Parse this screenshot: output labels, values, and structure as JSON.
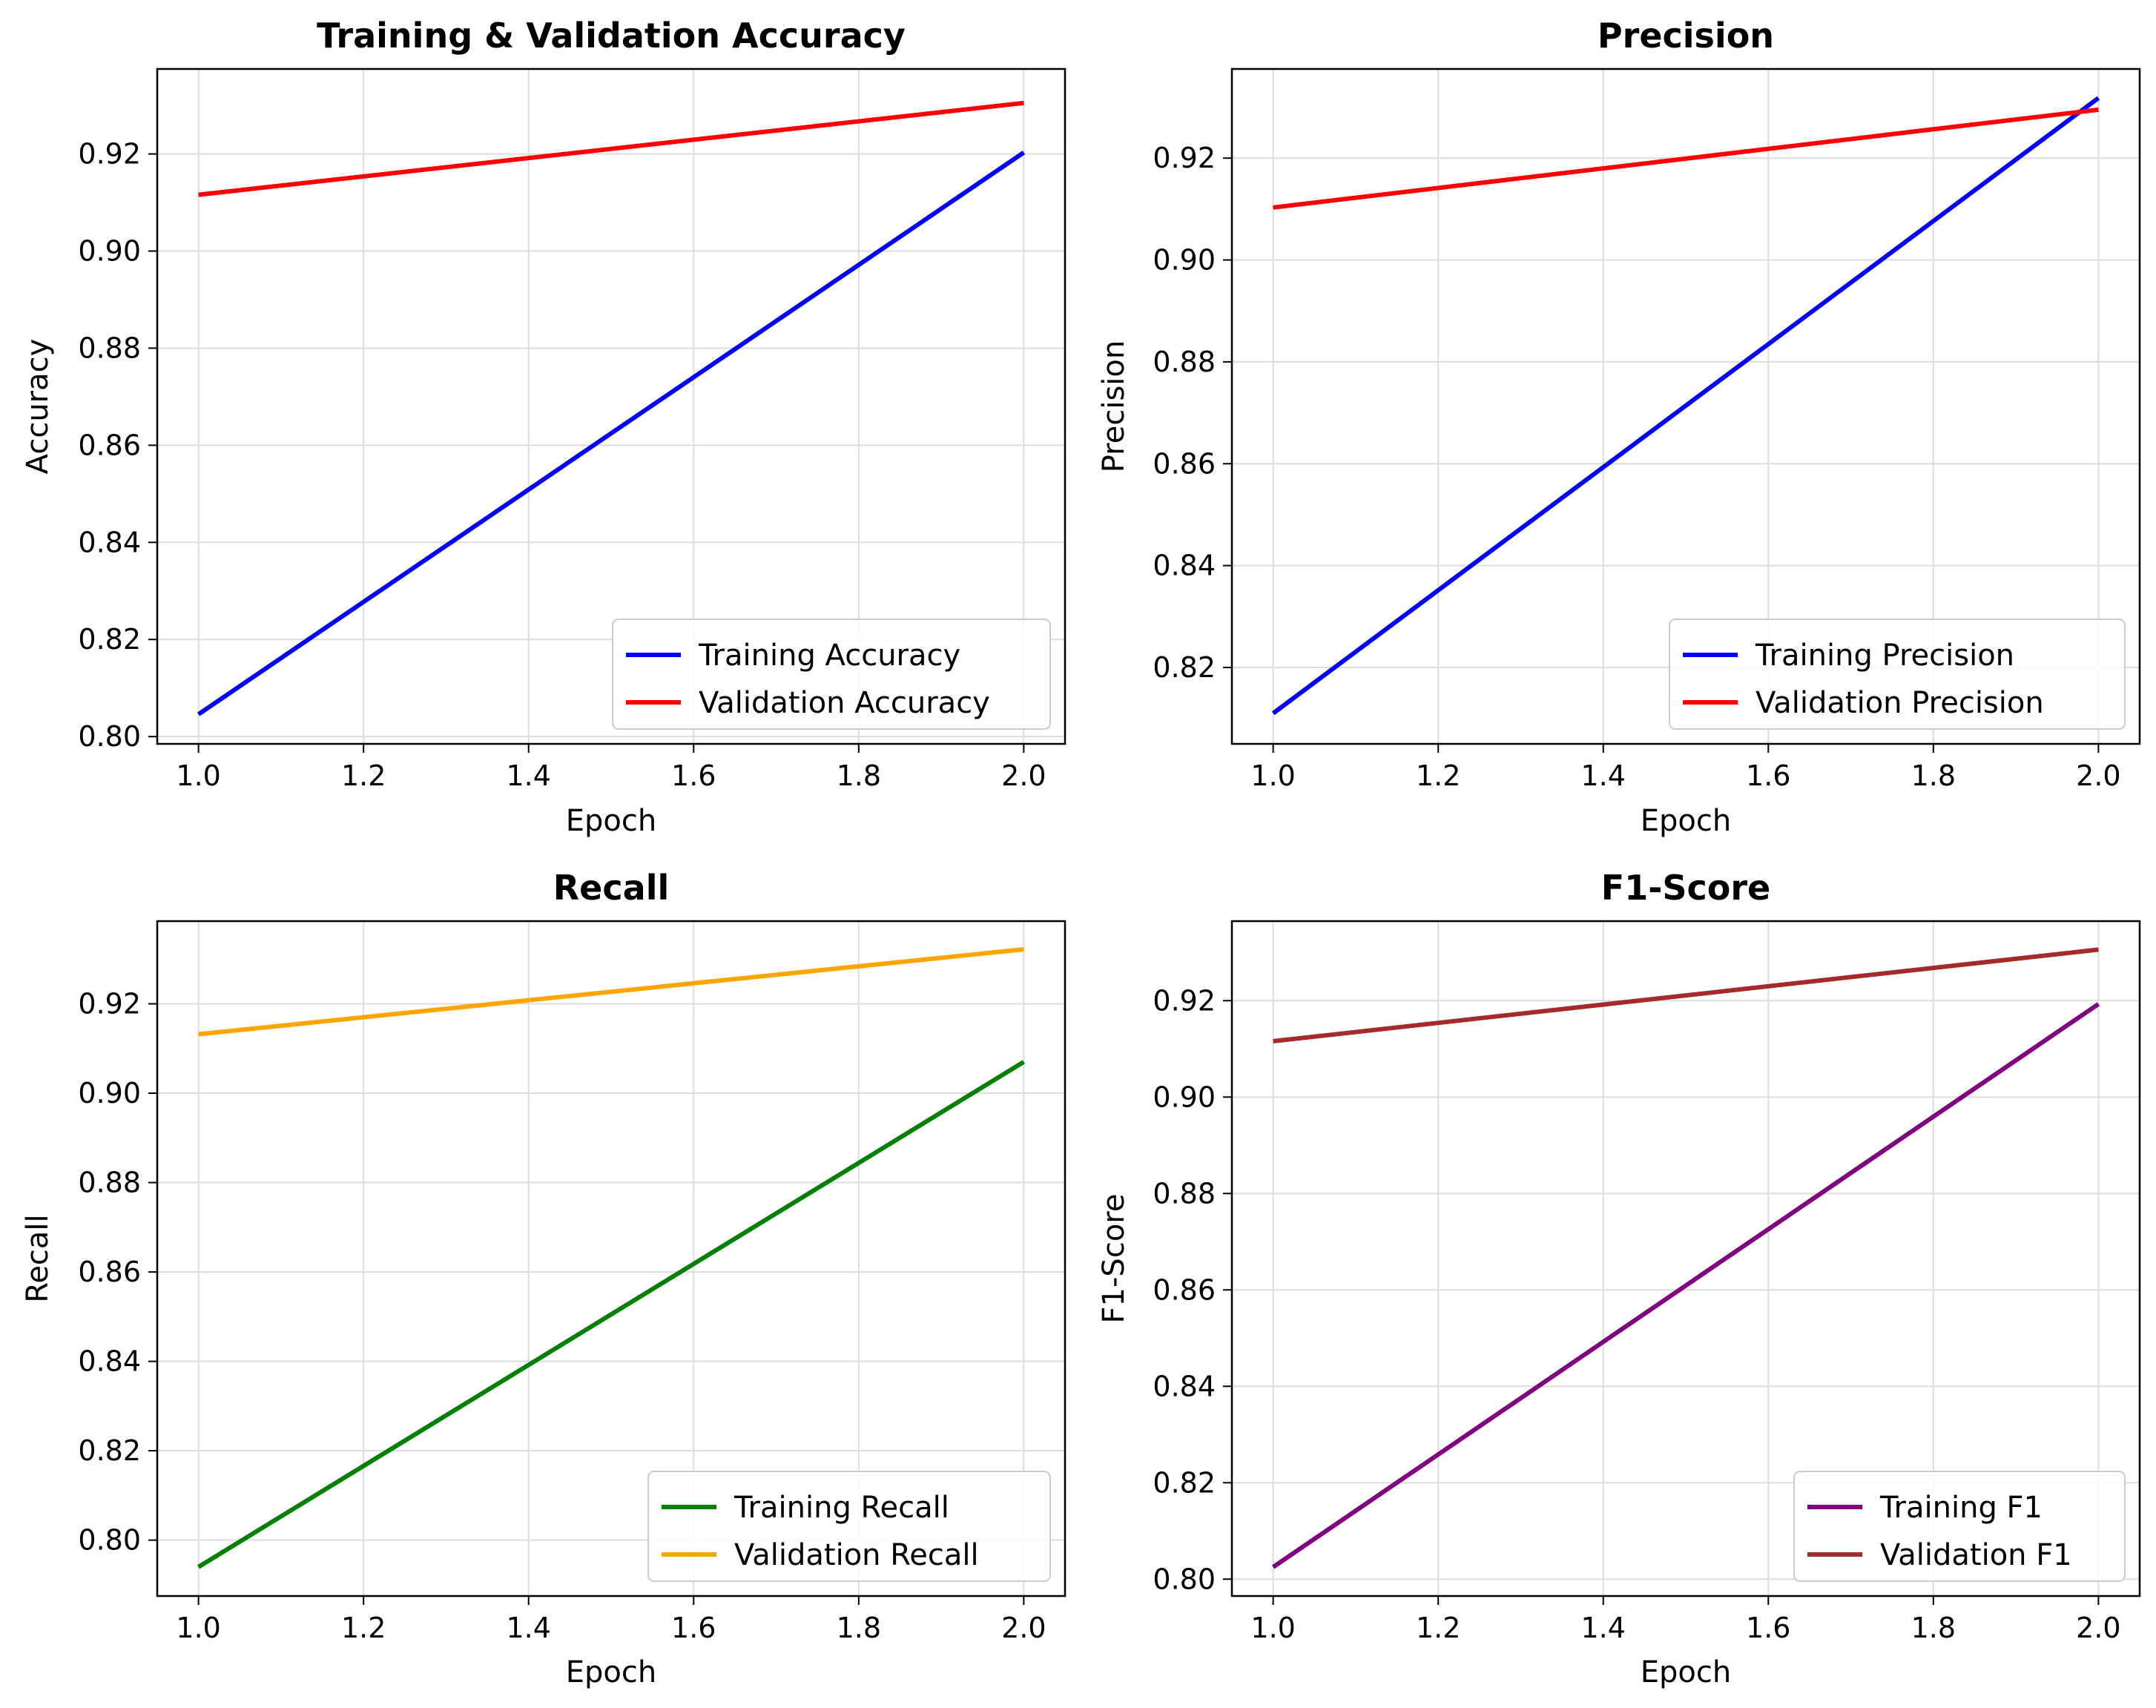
{
  "chart_data": [
    {
      "type": "line",
      "title": "Training & Validation Accuracy",
      "xlabel": "Epoch",
      "ylabel": "Accuracy",
      "xlim": [
        0.95,
        2.05
      ],
      "ylim": [
        0.7985,
        0.9375
      ],
      "xticks": [
        1.0,
        1.2,
        1.4,
        1.6,
        1.8,
        2.0
      ],
      "xtick_labels": [
        "1.0",
        "1.2",
        "1.4",
        "1.6",
        "1.8",
        "2.0"
      ],
      "yticks": [
        0.8,
        0.82,
        0.84,
        0.86,
        0.88,
        0.9,
        0.92
      ],
      "ytick_labels": [
        "0.80",
        "0.82",
        "0.84",
        "0.86",
        "0.88",
        "0.90",
        "0.92"
      ],
      "grid": true,
      "legend_position": "lower right",
      "series": [
        {
          "name": "Training Accuracy",
          "color": "#0000ff",
          "x": [
            1.0,
            2.0
          ],
          "y": [
            0.8046,
            0.9203
          ]
        },
        {
          "name": "Validation Accuracy",
          "color": "#ff0000",
          "x": [
            1.0,
            2.0
          ],
          "y": [
            0.9116,
            0.9305
          ]
        }
      ]
    },
    {
      "type": "line",
      "title": "Precision",
      "xlabel": "Epoch",
      "ylabel": "Precision",
      "xlim": [
        0.95,
        2.05
      ],
      "ylim": [
        0.805,
        0.9375
      ],
      "xticks": [
        1.0,
        1.2,
        1.4,
        1.6,
        1.8,
        2.0
      ],
      "xtick_labels": [
        "1.0",
        "1.2",
        "1.4",
        "1.6",
        "1.8",
        "2.0"
      ],
      "yticks": [
        0.82,
        0.84,
        0.86,
        0.88,
        0.9,
        0.92
      ],
      "ytick_labels": [
        "0.82",
        "0.84",
        "0.86",
        "0.88",
        "0.90",
        "0.92"
      ],
      "grid": true,
      "legend_position": "lower right",
      "series": [
        {
          "name": "Training Precision",
          "color": "#0000ff",
          "x": [
            1.0,
            2.0
          ],
          "y": [
            0.811,
            0.9318
          ]
        },
        {
          "name": "Validation Precision",
          "color": "#ff0000",
          "x": [
            1.0,
            2.0
          ],
          "y": [
            0.9103,
            0.9295
          ]
        }
      ]
    },
    {
      "type": "line",
      "title": "Recall",
      "xlabel": "Epoch",
      "ylabel": "Recall",
      "xlim": [
        0.95,
        2.05
      ],
      "ylim": [
        0.7875,
        0.9385
      ],
      "xticks": [
        1.0,
        1.2,
        1.4,
        1.6,
        1.8,
        2.0
      ],
      "xtick_labels": [
        "1.0",
        "1.2",
        "1.4",
        "1.6",
        "1.8",
        "2.0"
      ],
      "yticks": [
        0.8,
        0.82,
        0.84,
        0.86,
        0.88,
        0.9,
        0.92
      ],
      "ytick_labels": [
        "0.80",
        "0.82",
        "0.84",
        "0.86",
        "0.88",
        "0.90",
        "0.92"
      ],
      "grid": true,
      "legend_position": "lower right",
      "series": [
        {
          "name": "Training Recall",
          "color": "#008000",
          "x": [
            1.0,
            2.0
          ],
          "y": [
            0.794,
            0.907
          ]
        },
        {
          "name": "Validation Recall",
          "color": "#ffa500",
          "x": [
            1.0,
            2.0
          ],
          "y": [
            0.9132,
            0.9322
          ]
        }
      ]
    },
    {
      "type": "line",
      "title": "F1-Score",
      "xlabel": "Epoch",
      "ylabel": "F1-Score",
      "xlim": [
        0.95,
        2.05
      ],
      "ylim": [
        0.7965,
        0.9365
      ],
      "xticks": [
        1.0,
        1.2,
        1.4,
        1.6,
        1.8,
        2.0
      ],
      "xtick_labels": [
        "1.0",
        "1.2",
        "1.4",
        "1.6",
        "1.8",
        "2.0"
      ],
      "yticks": [
        0.8,
        0.82,
        0.84,
        0.86,
        0.88,
        0.9,
        0.92
      ],
      "ytick_labels": [
        "0.80",
        "0.82",
        "0.84",
        "0.86",
        "0.88",
        "0.90",
        "0.92"
      ],
      "grid": true,
      "legend_position": "lower right",
      "series": [
        {
          "name": "Training F1",
          "color": "#800080",
          "x": [
            1.0,
            2.0
          ],
          "y": [
            0.8025,
            0.9193
          ]
        },
        {
          "name": "Validation F1",
          "color": "#a52a2a",
          "x": [
            1.0,
            2.0
          ],
          "y": [
            0.9116,
            0.9306
          ]
        }
      ]
    }
  ]
}
